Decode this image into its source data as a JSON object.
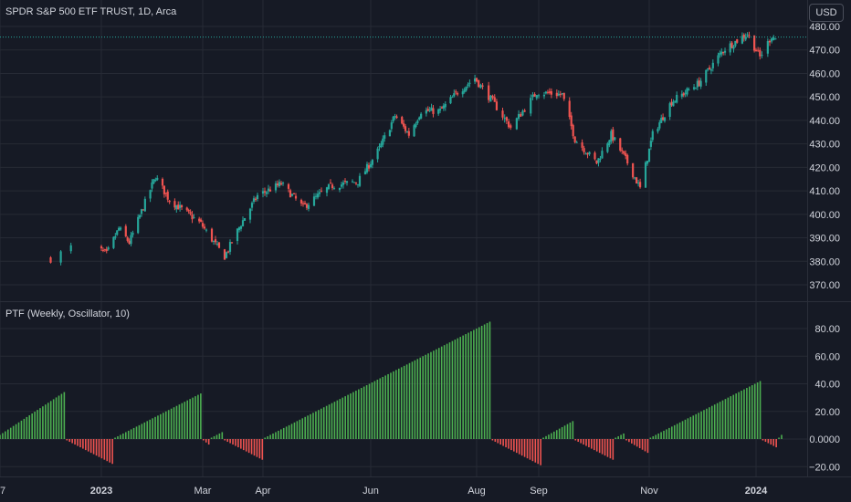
{
  "chart_title": "SPDR S&P 500 ETF TRUST, 1D, Arca",
  "currency": "USD",
  "colors": {
    "background": "#161a25",
    "grid": "#262a35",
    "text": "#d1d4dc",
    "up": "#26a69a",
    "down": "#ef5350",
    "hist_up": "#4caf50",
    "hist_down": "#ef5350"
  },
  "chart_data": [
    {
      "type": "candlestick",
      "title": "SPDR S&P 500 ETF TRUST, 1D, Arca",
      "y_ticks": [
        "370.00",
        "380.00",
        "390.00",
        "400.00",
        "410.00",
        "420.00",
        "430.00",
        "440.00",
        "450.00",
        "460.00",
        "470.00",
        "480.00"
      ],
      "ylim": [
        364,
        485
      ],
      "last_price_line": 475.5,
      "approx_path": [
        {
          "date": "2022-12-28",
          "close": 381
        },
        {
          "date": "2022-12-30",
          "close": 386
        },
        {
          "date": "2023-01-05",
          "close": 383
        },
        {
          "date": "2023-01-12",
          "close": 394
        },
        {
          "date": "2023-01-18",
          "close": 388
        },
        {
          "date": "2023-01-27",
          "close": 405
        },
        {
          "date": "2023-02-02",
          "close": 416
        },
        {
          "date": "2023-02-10",
          "close": 406
        },
        {
          "date": "2023-02-21",
          "close": 400
        },
        {
          "date": "2023-02-28",
          "close": 396
        },
        {
          "date": "2023-03-09",
          "close": 386
        },
        {
          "date": "2023-03-13",
          "close": 382
        },
        {
          "date": "2023-03-22",
          "close": 396
        },
        {
          "date": "2023-03-31",
          "close": 408
        },
        {
          "date": "2023-04-13",
          "close": 413
        },
        {
          "date": "2023-04-25",
          "close": 403
        },
        {
          "date": "2023-05-10",
          "close": 412
        },
        {
          "date": "2023-05-25",
          "close": 414
        },
        {
          "date": "2023-06-06",
          "close": 428
        },
        {
          "date": "2023-06-15",
          "close": 442
        },
        {
          "date": "2023-06-23",
          "close": 434
        },
        {
          "date": "2023-06-30",
          "close": 444
        },
        {
          "date": "2023-07-11",
          "close": 444
        },
        {
          "date": "2023-07-21",
          "close": 452
        },
        {
          "date": "2023-07-31",
          "close": 458
        },
        {
          "date": "2023-08-09",
          "close": 448
        },
        {
          "date": "2023-08-18",
          "close": 437
        },
        {
          "date": "2023-08-31",
          "close": 452
        },
        {
          "date": "2023-09-14",
          "close": 451
        },
        {
          "date": "2023-09-21",
          "close": 432
        },
        {
          "date": "2023-10-03",
          "close": 422
        },
        {
          "date": "2023-10-11",
          "close": 434
        },
        {
          "date": "2023-10-20",
          "close": 422
        },
        {
          "date": "2023-10-27",
          "close": 411
        },
        {
          "date": "2023-11-03",
          "close": 434
        },
        {
          "date": "2023-11-14",
          "close": 448
        },
        {
          "date": "2023-11-30",
          "close": 456
        },
        {
          "date": "2023-12-14",
          "close": 470
        },
        {
          "date": "2023-12-28",
          "close": 477
        },
        {
          "date": "2024-01-04",
          "close": 467
        },
        {
          "date": "2024-01-10",
          "close": 476
        },
        {
          "date": "2024-01-12",
          "close": 475
        }
      ]
    },
    {
      "type": "bar",
      "title": "PTF (Weekly, Oscillator, 10)",
      "y_ticks": [
        "−20.00",
        "0.0000",
        "20.00",
        "40.00",
        "60.00",
        "80.00"
      ],
      "ylim": [
        -24,
        90
      ],
      "segments": [
        {
          "start_value": 3,
          "end_value": 34,
          "bars": 25
        },
        {
          "start_value": -1,
          "end_value": -18,
          "bars": 18
        },
        {
          "start_value": 1,
          "end_value": 33,
          "bars": 33
        },
        {
          "start_value": -1,
          "end_value": -4,
          "bars": 3
        },
        {
          "start_value": 1,
          "end_value": 5,
          "bars": 5
        },
        {
          "start_value": -1,
          "end_value": -15,
          "bars": 15
        },
        {
          "start_value": 1,
          "end_value": 85,
          "bars": 85
        },
        {
          "start_value": -1,
          "end_value": -19,
          "bars": 19
        },
        {
          "start_value": 1,
          "end_value": 13,
          "bars": 12
        },
        {
          "start_value": -1,
          "end_value": -15,
          "bars": 15
        },
        {
          "start_value": 1,
          "end_value": 4,
          "bars": 4
        },
        {
          "start_value": -1,
          "end_value": -10,
          "bars": 9
        },
        {
          "start_value": 1,
          "end_value": 42,
          "bars": 42
        },
        {
          "start_value": -1,
          "end_value": -6,
          "bars": 6
        },
        {
          "start_value": 1,
          "end_value": 3,
          "bars": 2
        }
      ]
    }
  ],
  "x_axis": {
    "labels": [
      "7",
      "2023",
      "Mar",
      "Apr",
      "Jun",
      "Aug",
      "Sep",
      "Nov",
      "2024"
    ]
  }
}
